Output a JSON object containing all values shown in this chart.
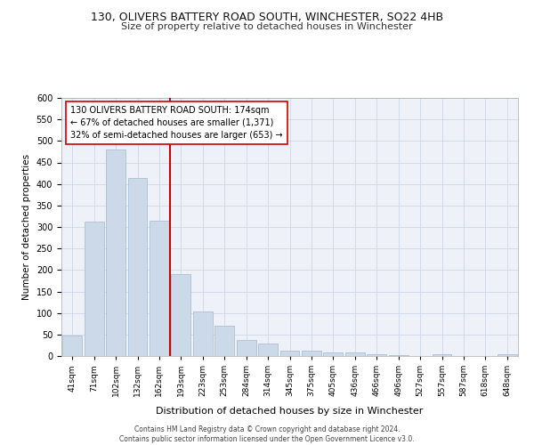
{
  "title1": "130, OLIVERS BATTERY ROAD SOUTH, WINCHESTER, SO22 4HB",
  "title2": "Size of property relative to detached houses in Winchester",
  "xlabel": "Distribution of detached houses by size in Winchester",
  "ylabel": "Number of detached properties",
  "categories": [
    "41sqm",
    "71sqm",
    "102sqm",
    "132sqm",
    "162sqm",
    "193sqm",
    "223sqm",
    "253sqm",
    "284sqm",
    "314sqm",
    "345sqm",
    "375sqm",
    "405sqm",
    "436sqm",
    "466sqm",
    "496sqm",
    "527sqm",
    "557sqm",
    "587sqm",
    "618sqm",
    "648sqm"
  ],
  "values": [
    47,
    312,
    480,
    414,
    315,
    190,
    103,
    70,
    37,
    30,
    13,
    13,
    9,
    8,
    5,
    3,
    0,
    5,
    0,
    0,
    5
  ],
  "bar_color": "#ccd9e8",
  "bar_edge_color": "#a0b8d0",
  "vline_color": "#cc0000",
  "annotation_text": "130 OLIVERS BATTERY ROAD SOUTH: 174sqm\n← 67% of detached houses are smaller (1,371)\n32% of semi-detached houses are larger (653) →",
  "annotation_box_color": "#ffffff",
  "annotation_box_edge": "#cc0000",
  "ylim": [
    0,
    600
  ],
  "yticks": [
    0,
    50,
    100,
    150,
    200,
    250,
    300,
    350,
    400,
    450,
    500,
    550,
    600
  ],
  "footer": "Contains HM Land Registry data © Crown copyright and database right 2024.\nContains public sector information licensed under the Open Government Licence v3.0.",
  "grid_color": "#d0d8e8",
  "background_color": "#eef2f8"
}
